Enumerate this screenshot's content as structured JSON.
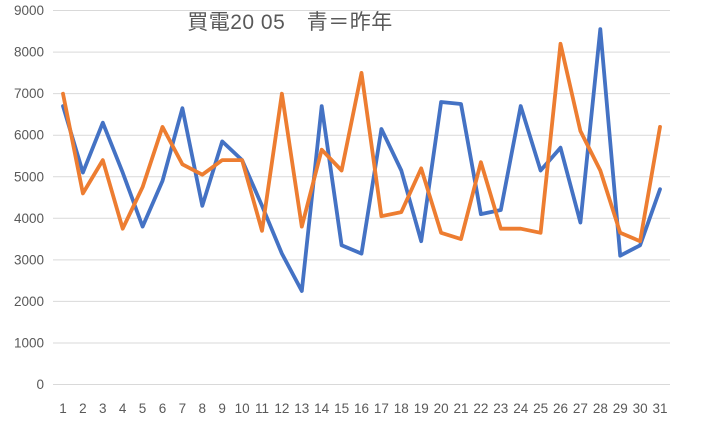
{
  "title": "買電20 05　青＝昨年",
  "chart_data": {
    "type": "line",
    "title": "買電20 05　青＝昨年",
    "x": [
      1,
      2,
      3,
      4,
      5,
      6,
      7,
      8,
      9,
      10,
      11,
      12,
      13,
      14,
      15,
      16,
      17,
      18,
      19,
      20,
      21,
      22,
      23,
      24,
      25,
      26,
      27,
      28,
      29,
      30,
      31
    ],
    "series": [
      {
        "id": "last-year-blue",
        "label": "青＝昨年",
        "color": "#4472C4",
        "values": [
          6700,
          5100,
          6300,
          5100,
          3800,
          4900,
          6650,
          4300,
          5850,
          5400,
          4300,
          3150,
          2250,
          6700,
          3350,
          3150,
          6150,
          5150,
          3450,
          6800,
          6750,
          4100,
          4200,
          6700,
          5150,
          5700,
          3900,
          8550,
          3100,
          3350,
          4700
        ]
      },
      {
        "id": "this-year-orange",
        "label": "",
        "color": "#ED7D31",
        "values": [
          7000,
          4600,
          5400,
          3750,
          4750,
          6200,
          5300,
          5050,
          5400,
          5400,
          3700,
          7000,
          3800,
          5650,
          5150,
          7500,
          4050,
          4150,
          5200,
          3650,
          3500,
          5350,
          3750,
          3750,
          3650,
          8200,
          6100,
          5150,
          3650,
          3450,
          6200
        ]
      }
    ],
    "ylim": [
      0,
      9000
    ],
    "ytick_step": 1000,
    "ytick_labels": [
      "0",
      "1000",
      "2000",
      "3000",
      "4000",
      "5000",
      "6000",
      "7000",
      "8000",
      "9000"
    ],
    "grid": "horizontal",
    "legend_position": "none",
    "colors": {
      "background": "#FFFFFF",
      "gridline": "#D9D9D9",
      "tick_label": "#595959",
      "title": "#595959"
    }
  }
}
